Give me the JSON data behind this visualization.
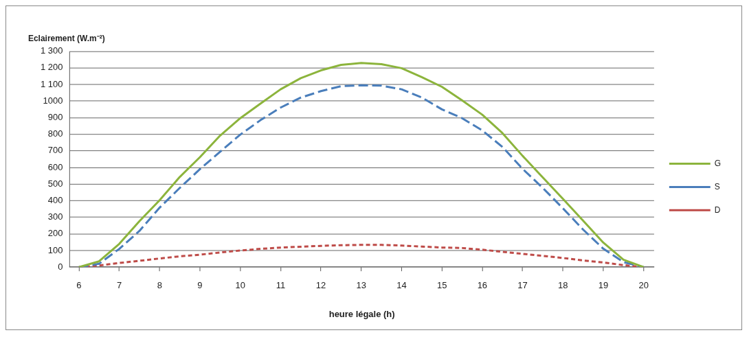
{
  "chart_data": {
    "type": "line",
    "xlabel": "heure légale (h)",
    "ylabel": "Eclairement (W.m⁻²)",
    "x": [
      6,
      6.5,
      7,
      7.5,
      8,
      8.5,
      9,
      9.5,
      10,
      10.5,
      11,
      11.5,
      12,
      12.5,
      13,
      13.5,
      14,
      14.5,
      15,
      15.5,
      16,
      16.5,
      17,
      17.5,
      18,
      18.5,
      19,
      19.5,
      20
    ],
    "series": [
      {
        "name": "G",
        "color": "#8cb43c",
        "line_style": "solid",
        "values": [
          0,
          35,
          140,
          277,
          403,
          543,
          662,
          792,
          897,
          985,
          1071,
          1138,
          1185,
          1218,
          1230,
          1222,
          1198,
          1144,
          1086,
          1004,
          918,
          807,
          670,
          540,
          411,
          280,
          148,
          45,
          0
        ]
      },
      {
        "name": "S",
        "color": "#4a7ebb",
        "line_style": "dashed",
        "values": [
          0,
          20,
          110,
          218,
          358,
          477,
          590,
          695,
          798,
          885,
          961,
          1021,
          1060,
          1090,
          1095,
          1093,
          1071,
          1022,
          950,
          897,
          823,
          724,
          592,
          477,
          354,
          226,
          111,
          30,
          0
        ]
      },
      {
        "name": "D",
        "color": "#be4b48",
        "line_style": "dotted",
        "values": [
          0,
          10,
          25,
          38,
          52,
          65,
          75,
          88,
          100,
          110,
          118,
          123,
          128,
          132,
          134,
          134,
          130,
          124,
          118,
          115,
          105,
          92,
          80,
          68,
          55,
          40,
          28,
          12,
          0
        ]
      }
    ],
    "xlim": [
      5.77,
      20.26
    ],
    "xticks": [
      6,
      7,
      8,
      9,
      10,
      11,
      12,
      13,
      14,
      15,
      16,
      17,
      18,
      19,
      20
    ],
    "ylim": [
      0,
      1300
    ],
    "yticks": [
      0,
      100,
      200,
      300,
      400,
      500,
      600,
      700,
      800,
      900,
      1000,
      {
        "value": 1100,
        "label": "1 100"
      },
      {
        "value": 1200,
        "label": "1 200"
      },
      {
        "value": 1300,
        "label": "1 300"
      }
    ],
    "grid": "y",
    "legend": "right",
    "marker": "none"
  }
}
